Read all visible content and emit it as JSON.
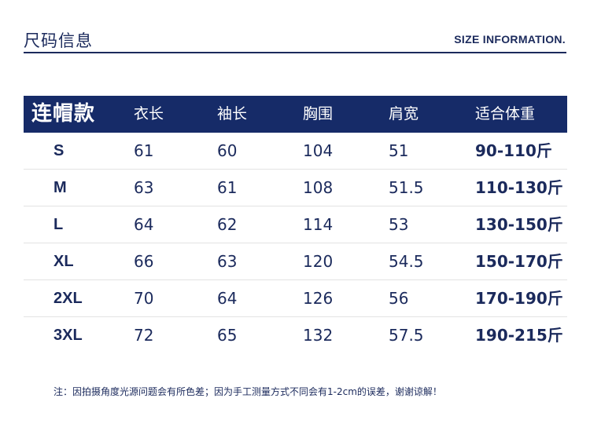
{
  "header": {
    "title_cn": "尺码信息",
    "title_en": "SIZE INFORMATION."
  },
  "table": {
    "columns": [
      "连帽款",
      "衣长",
      "袖长",
      "胸围",
      "肩宽",
      "适合体重"
    ],
    "rows": [
      [
        "S",
        "61",
        "60",
        "104",
        "51",
        "90-110斤"
      ],
      [
        "M",
        "63",
        "61",
        "108",
        "51.5",
        "110-130斤"
      ],
      [
        "L",
        "64",
        "62",
        "114",
        "53",
        "130-150斤"
      ],
      [
        "XL",
        "66",
        "63",
        "120",
        "54.5",
        "150-170斤"
      ],
      [
        "2XL",
        "70",
        "64",
        "126",
        "56",
        "170-190斤"
      ],
      [
        "3XL",
        "72",
        "65",
        "132",
        "57.5",
        "190-215斤"
      ]
    ]
  },
  "note": "注：因拍摄角度光源问题会有所色差；因为手工测量方式不同会有1-2cm的误差，谢谢谅解！",
  "colors": {
    "header_bg": "#162b68",
    "text": "#1b2a5c",
    "divider": "#e3e3e3"
  }
}
